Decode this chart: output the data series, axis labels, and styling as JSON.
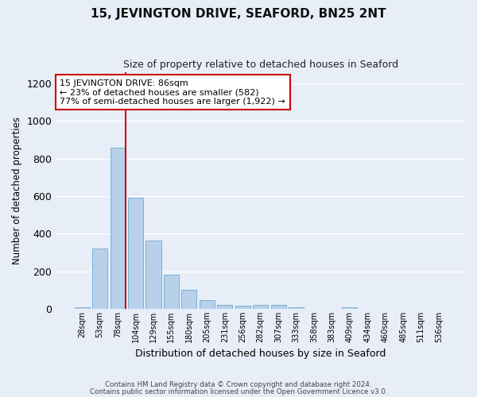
{
  "title": "15, JEVINGTON DRIVE, SEAFORD, BN25 2NT",
  "subtitle": "Size of property relative to detached houses in Seaford",
  "xlabel": "Distribution of detached houses by size in Seaford",
  "ylabel": "Number of detached properties",
  "categories": [
    "28sqm",
    "53sqm",
    "78sqm",
    "104sqm",
    "129sqm",
    "155sqm",
    "180sqm",
    "205sqm",
    "231sqm",
    "256sqm",
    "282sqm",
    "307sqm",
    "333sqm",
    "358sqm",
    "383sqm",
    "409sqm",
    "434sqm",
    "460sqm",
    "485sqm",
    "511sqm",
    "536sqm"
  ],
  "values": [
    10,
    320,
    855,
    590,
    365,
    180,
    103,
    48,
    22,
    15,
    20,
    20,
    8,
    0,
    0,
    10,
    0,
    0,
    0,
    0,
    0
  ],
  "bar_color": "#b8d0ea",
  "bar_edgecolor": "#7aafd4",
  "background_color": "#e8eef8",
  "grid_color": "#ffffff",
  "vline_color": "#cc0000",
  "annotation_text": "15 JEVINGTON DRIVE: 86sqm\n← 23% of detached houses are smaller (582)\n77% of semi-detached houses are larger (1,922) →",
  "annotation_box_edgecolor": "#cc0000",
  "annotation_box_facecolor": "#ffffff",
  "ylim": [
    0,
    1260
  ],
  "yticks": [
    0,
    200,
    400,
    600,
    800,
    1000,
    1200
  ],
  "footer1": "Contains HM Land Registry data © Crown copyright and database right 2024.",
  "footer2": "Contains public sector information licensed under the Open Government Licence v3.0."
}
